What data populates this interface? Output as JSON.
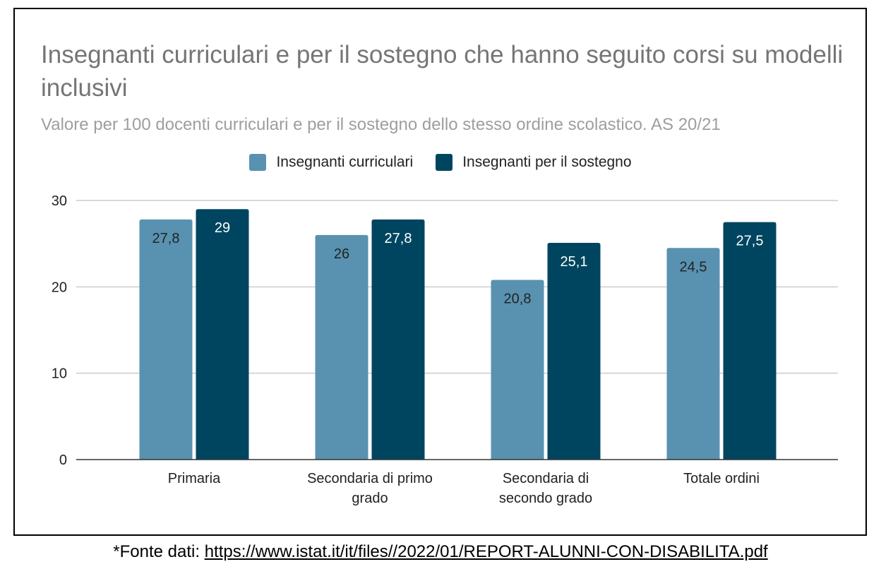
{
  "chart_data": {
    "type": "bar",
    "title": "Insegnanti curriculari e per il sostegno che hanno seguito corsi su modelli inclusivi",
    "subtitle": "Valore per 100 docenti curriculari e per il sostegno dello stesso ordine scolastico. AS 20/21",
    "categories": [
      [
        "Primaria"
      ],
      [
        "Secondaria di primo",
        "grado"
      ],
      [
        "Secondaria di",
        "secondo grado"
      ],
      [
        "Totale ordini"
      ]
    ],
    "series": [
      {
        "name": "Insegnanti curriculari",
        "color": "#5892b0",
        "values": [
          27.8,
          26,
          20.8,
          24.5
        ],
        "labels": [
          "27,8",
          "26",
          "20,8",
          "24,5"
        ],
        "label_color": "#222222"
      },
      {
        "name": "Insegnanti per il sostegno",
        "color": "#00455f",
        "values": [
          29,
          27.8,
          25.1,
          27.5
        ],
        "labels": [
          "29",
          "27,8",
          "25,1",
          "27,5"
        ],
        "label_color": "#ffffff"
      }
    ],
    "ylim": [
      0,
      30
    ],
    "yticks": [
      0,
      10,
      20,
      30
    ],
    "grid": true,
    "legend_position": "top-center",
    "xlabel": "",
    "ylabel": ""
  },
  "source": {
    "prefix": "*Fonte dati: ",
    "link": "https://www.istat.it/it/files//2022/01/REPORT-ALUNNI-CON-DISABILITA.pdf"
  }
}
